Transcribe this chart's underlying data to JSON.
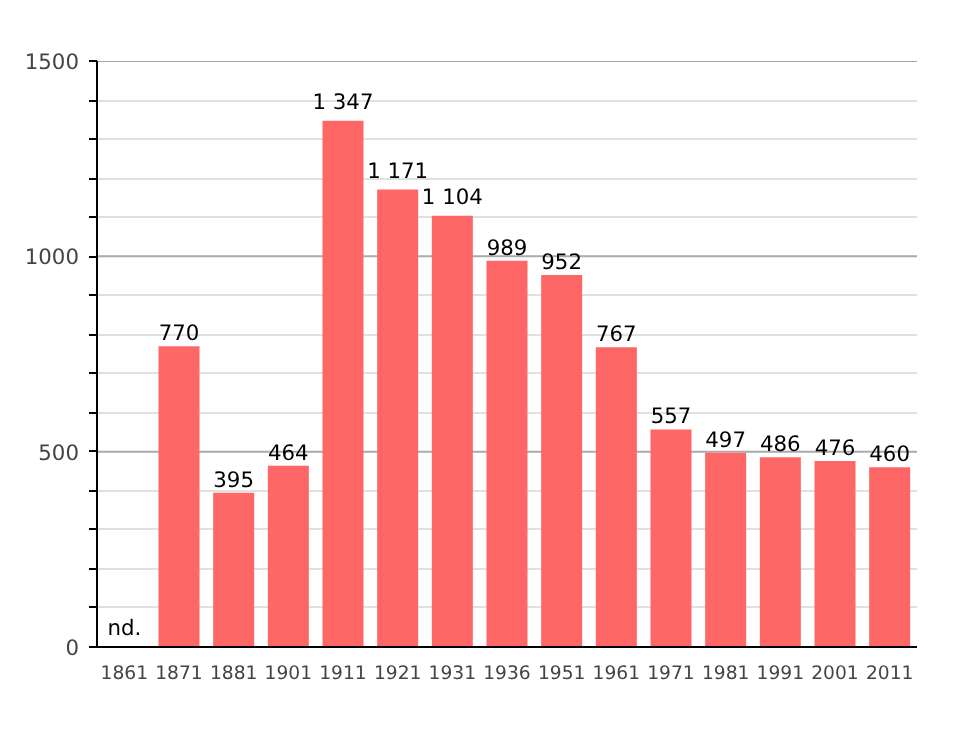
{
  "chart_data": {
    "type": "bar",
    "categories": [
      "1861",
      "1871",
      "1881",
      "1901",
      "1911",
      "1921",
      "1931",
      "1936",
      "1951",
      "1961",
      "1971",
      "1981",
      "1991",
      "2001",
      "2011"
    ],
    "values": [
      null,
      770,
      395,
      464,
      1347,
      1171,
      1104,
      989,
      952,
      767,
      557,
      497,
      486,
      476,
      460
    ],
    "value_labels": [
      "nd.",
      "770",
      "395",
      "464",
      "1 347",
      "1 171",
      "1 104",
      "989",
      "952",
      "767",
      "557",
      "497",
      "486",
      "476",
      "460"
    ],
    "color": "#ff6666",
    "ylim": [
      0,
      1500
    ],
    "yticks": [
      0,
      {
        "value": 100,
        "label": null
      },
      {
        "value": 200,
        "label": null
      },
      {
        "value": 300,
        "label": null
      },
      {
        "value": 400,
        "label": null
      },
      500,
      {
        "value": 600,
        "label": null
      },
      {
        "value": 700,
        "label": null
      },
      {
        "value": 800,
        "label": null
      },
      {
        "value": 900,
        "label": null
      },
      1000,
      {
        "value": 1100,
        "label": null
      },
      {
        "value": 1200,
        "label": null
      },
      {
        "value": 1300,
        "label": null
      },
      {
        "value": 1400,
        "label": null
      },
      1500
    ],
    "grid": "y"
  }
}
